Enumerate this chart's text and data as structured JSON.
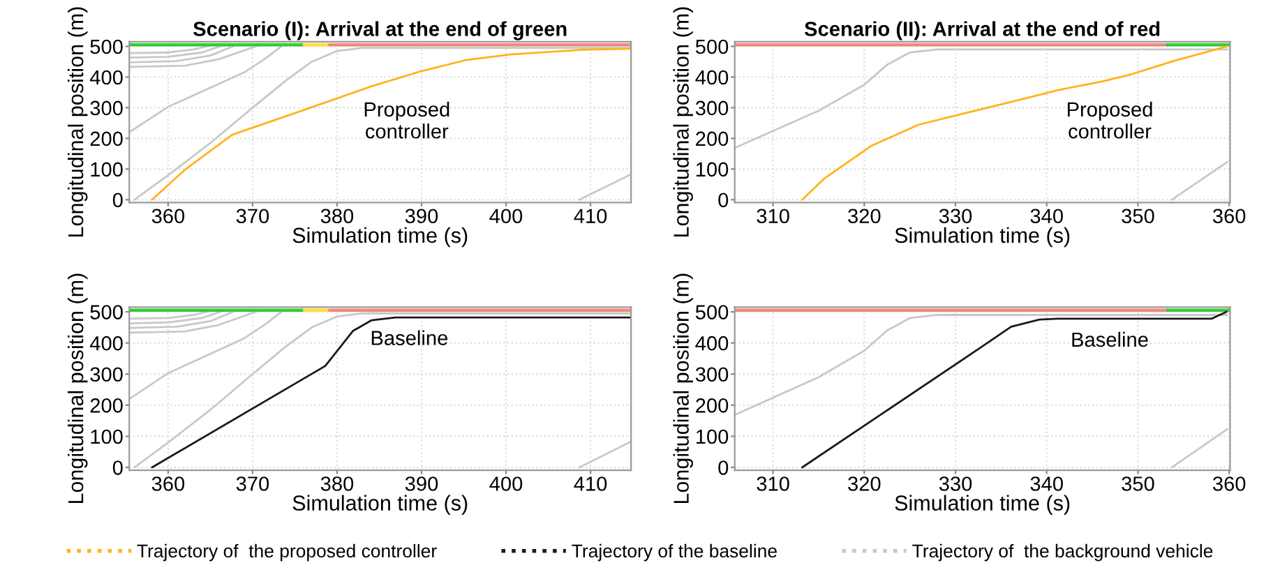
{
  "chart_data": [
    {
      "type": "line",
      "title": "Scenario (I): Arrival at the end of green",
      "xlabel": "Simulation time (s)",
      "ylabel": "Longitudinal position (m)",
      "xlim": [
        355.4,
        414.8
      ],
      "ylim": [
        -9,
        515
      ],
      "xticks": [
        360,
        370,
        380,
        390,
        400,
        410
      ],
      "yticks": [
        0,
        100,
        200,
        300,
        400,
        500
      ],
      "grid": true,
      "legend": "bottom",
      "annotations": [
        "Proposed\ncontroller"
      ],
      "series": [
        {
          "color": "#c8c8c8",
          "x": [
            355.4,
            360,
            365,
            369,
            371.5,
            373.4
          ],
          "values": [
            220,
            303,
            365,
            415,
            460,
            500
          ]
        },
        {
          "color": "#c8c8c8",
          "x": [
            356,
            360,
            365,
            370,
            374,
            377,
            380,
            383,
            414.8
          ],
          "values": [
            0,
            80,
            185,
            300,
            390,
            450,
            485,
            495,
            495
          ]
        },
        {
          "color": "#c8c8c8",
          "x": [
            355.4,
            360,
            363,
            365.4
          ],
          "values": [
            478,
            480,
            490,
            505
          ]
        },
        {
          "color": "#c8c8c8",
          "x": [
            355.4,
            360,
            364,
            366.7
          ],
          "values": [
            463,
            466,
            480,
            505
          ]
        },
        {
          "color": "#c8c8c8",
          "x": [
            355.4,
            361,
            365,
            368.1
          ],
          "values": [
            448,
            452,
            470,
            505
          ]
        },
        {
          "color": "#c8c8c8",
          "x": [
            355.4,
            362,
            366,
            370.9
          ],
          "values": [
            433,
            437,
            458,
            505
          ]
        },
        {
          "color": "#c8c8c8",
          "x": [
            408.7,
            414.8
          ],
          "values": [
            0,
            83
          ]
        },
        {
          "color": "#33cc33",
          "x": [
            355.4,
            376.1
          ],
          "values": [
            505,
            505
          ]
        },
        {
          "color": "#ffe033",
          "x": [
            376.1,
            379.1
          ],
          "values": [
            505,
            505
          ]
        },
        {
          "color": "#f4877a",
          "x": [
            379.1,
            414.8
          ],
          "values": [
            505,
            505
          ]
        },
        {
          "name": "Trajectory of  the proposed controller",
          "color": "#ffb31a",
          "x": [
            358.1,
            362,
            367.6,
            375.9,
            384.1,
            389.7,
            395.2,
            400.7,
            409,
            414.8
          ],
          "values": [
            0,
            98,
            212,
            291,
            370,
            417,
            455,
            474,
            489,
            492
          ]
        }
      ]
    },
    {
      "type": "line",
      "title": "Scenario (II): Arrival at the end of red",
      "xlabel": "Simulation time (s)",
      "ylabel": "Longitudinal position (m)",
      "xlim": [
        305.8,
        360.1
      ],
      "ylim": [
        -9,
        515
      ],
      "xticks": [
        310,
        320,
        330,
        340,
        350,
        360
      ],
      "yticks": [
        0,
        100,
        200,
        300,
        400,
        500
      ],
      "grid": true,
      "annotations": [
        "Proposed\ncontroller"
      ],
      "series": [
        {
          "color": "#c8c8c8",
          "x": [
            305.8,
            315,
            320,
            322.5,
            325,
            328,
            359.8
          ],
          "values": [
            169,
            290,
            375,
            440,
            480,
            490,
            490
          ]
        },
        {
          "color": "#c8c8c8",
          "x": [
            353.7,
            359.8
          ],
          "values": [
            0,
            123
          ]
        },
        {
          "color": "#f4877a",
          "x": [
            305.8,
            353.2
          ],
          "values": [
            505,
            505
          ]
        },
        {
          "color": "#33cc33",
          "x": [
            353.2,
            360.1
          ],
          "values": [
            505,
            505
          ]
        },
        {
          "color": "#ffb31a",
          "x": [
            313.2,
            315.7,
            320.8,
            325.9,
            331,
            336.1,
            341.2,
            346.3,
            349.4,
            354,
            359.8
          ],
          "values": [
            0,
            71,
            176,
            244,
            282,
            319,
            357,
            387,
            410,
            453,
            500
          ]
        }
      ]
    },
    {
      "type": "line",
      "xlabel": "Simulation time (s)",
      "ylabel": "Longitudinal position (m)",
      "xlim": [
        355.4,
        414.8
      ],
      "ylim": [
        -9,
        515
      ],
      "xticks": [
        360,
        370,
        380,
        390,
        400,
        410
      ],
      "yticks": [
        0,
        100,
        200,
        300,
        400,
        500
      ],
      "grid": true,
      "legend": "bottom",
      "annotations": [
        "Baseline"
      ],
      "series": [
        {
          "color": "#c8c8c8",
          "x": [
            355.4,
            360,
            365,
            369,
            371.5,
            373.4
          ],
          "values": [
            220,
            303,
            365,
            415,
            460,
            500
          ]
        },
        {
          "color": "#c8c8c8",
          "x": [
            356,
            360,
            365,
            370,
            374,
            377,
            380,
            383,
            414.8
          ],
          "values": [
            0,
            80,
            185,
            300,
            390,
            450,
            485,
            495,
            495
          ]
        },
        {
          "color": "#c8c8c8",
          "x": [
            355.4,
            360,
            363,
            365.4
          ],
          "values": [
            478,
            480,
            490,
            505
          ]
        },
        {
          "color": "#c8c8c8",
          "x": [
            355.4,
            360,
            364,
            366.7
          ],
          "values": [
            463,
            466,
            480,
            505
          ]
        },
        {
          "color": "#c8c8c8",
          "x": [
            355.4,
            361,
            365,
            368.1
          ],
          "values": [
            448,
            452,
            470,
            505
          ]
        },
        {
          "color": "#c8c8c8",
          "x": [
            355.4,
            362,
            366,
            370.9
          ],
          "values": [
            433,
            437,
            458,
            505
          ]
        },
        {
          "color": "#c8c8c8",
          "x": [
            408.7,
            414.8
          ],
          "values": [
            0,
            83
          ]
        },
        {
          "color": "#33cc33",
          "x": [
            355.4,
            376.1
          ],
          "values": [
            505,
            505
          ]
        },
        {
          "color": "#ffe033",
          "x": [
            376.1,
            379.1
          ],
          "values": [
            505,
            505
          ]
        },
        {
          "color": "#f4877a",
          "x": [
            379.1,
            414.8
          ],
          "values": [
            505,
            505
          ]
        },
        {
          "name": "Trajectory of the baseline",
          "color": "#1a1a1a",
          "x": [
            358.1,
            378.6,
            381.9,
            384.1,
            386.9,
            414.8
          ],
          "values": [
            0,
            326,
            439,
            473,
            482,
            482
          ]
        }
      ]
    },
    {
      "type": "line",
      "xlabel": "Simulation time (s)",
      "ylabel": "Longitudinal position (m)",
      "xlim": [
        305.8,
        360.1
      ],
      "ylim": [
        -9,
        515
      ],
      "xticks": [
        310,
        320,
        330,
        340,
        350,
        360
      ],
      "yticks": [
        0,
        100,
        200,
        300,
        400,
        500
      ],
      "grid": true,
      "legend": "bottom",
      "annotations": [
        "Baseline"
      ],
      "series": [
        {
          "name": "Trajectory of  the background vehicle",
          "color": "#c8c8c8",
          "x": [
            305.8,
            315,
            320,
            322.5,
            325,
            328,
            359.8
          ],
          "values": [
            169,
            290,
            375,
            440,
            480,
            490,
            490
          ]
        },
        {
          "color": "#c8c8c8",
          "x": [
            353.7,
            359.8
          ],
          "values": [
            0,
            123
          ]
        },
        {
          "color": "#f4877a",
          "x": [
            305.8,
            353.2
          ],
          "values": [
            505,
            505
          ]
        },
        {
          "color": "#33cc33",
          "x": [
            353.2,
            360.1
          ],
          "values": [
            505,
            505
          ]
        },
        {
          "color": "#1a1a1a",
          "x": [
            313.2,
            333.1,
            336.1,
            339.2,
            341.2,
            358.1,
            359.7
          ],
          "values": [
            0,
            392,
            452,
            475,
            478,
            478,
            500
          ]
        }
      ]
    }
  ]
}
